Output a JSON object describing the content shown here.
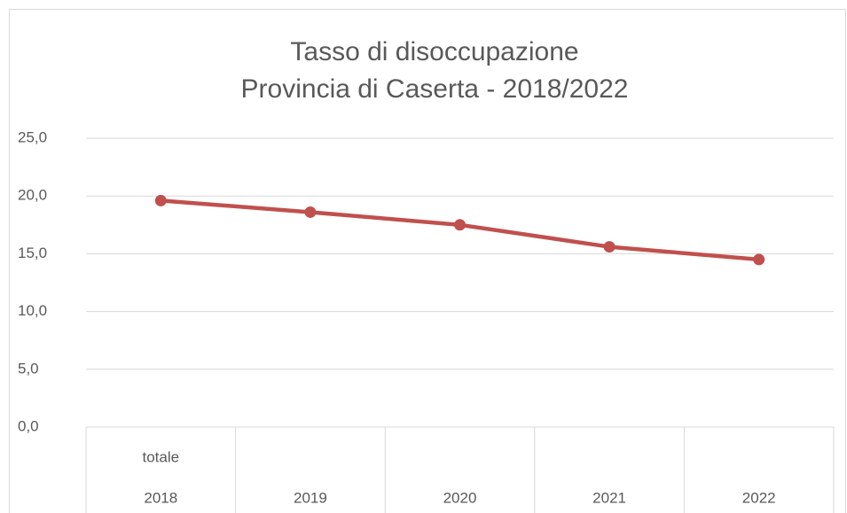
{
  "chart_data": {
    "type": "line",
    "title": [
      "Tasso di disoccupazione",
      "Provincia di Caserta - 2018/2022"
    ],
    "group_label": "totale",
    "categories": [
      "2018",
      "2019",
      "2020",
      "2021",
      "2022"
    ],
    "series": [
      {
        "name": "totale",
        "color": "#c0504d",
        "values": [
          19.6,
          18.6,
          17.5,
          15.6,
          14.5
        ]
      }
    ],
    "ylim": [
      0,
      25
    ],
    "yticks": [
      {
        "value": 0,
        "label": "0,0"
      },
      {
        "value": 5,
        "label": "5,0"
      },
      {
        "value": 10,
        "label": "10,0"
      },
      {
        "value": 15,
        "label": "15,0"
      },
      {
        "value": 20,
        "label": "20,0"
      },
      {
        "value": 25,
        "label": "25,0"
      }
    ],
    "grid": true
  }
}
